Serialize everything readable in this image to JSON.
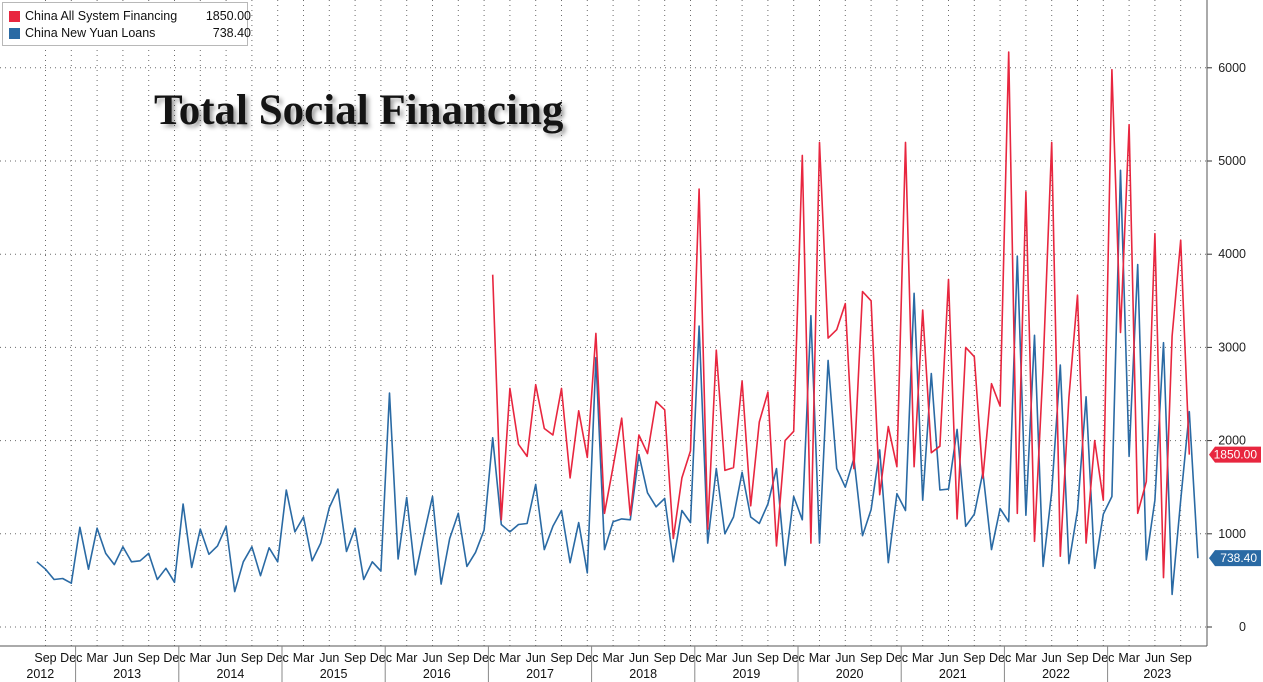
{
  "title": "Total Social Financing",
  "legend": [
    {
      "name": "China All System Financing",
      "value": "1850.00",
      "color": "#e8263f"
    },
    {
      "name": "China New Yuan Loans",
      "value": "738.40",
      "color": "#2a6aa4"
    }
  ],
  "chart_data": {
    "type": "line",
    "ylim": [
      -200,
      6700
    ],
    "yticks": [
      0,
      1000,
      2000,
      3000,
      4000,
      5000,
      6000
    ],
    "x_month_labels": [
      "Sep",
      "Dec",
      "Mar",
      "Jun",
      "Sep",
      "Dec",
      "Mar",
      "Jun",
      "Sep",
      "Dec",
      "Mar",
      "Jun",
      "Sep",
      "Dec",
      "Mar",
      "Jun",
      "Sep",
      "Dec",
      "Mar",
      "Jun",
      "Sep",
      "Dec",
      "Mar",
      "Jun",
      "Sep",
      "Dec",
      "Mar",
      "Jun",
      "Sep",
      "Dec",
      "Mar",
      "Jun",
      "Sep",
      "Dec",
      "Mar",
      "Jun",
      "Sep",
      "Dec",
      "Mar",
      "Jun",
      "Sep",
      "Dec",
      "Mar",
      "Jun",
      "Sep"
    ],
    "x_year_labels": [
      "2012",
      "2013",
      "2014",
      "2015",
      "2016",
      "2017",
      "2018",
      "2019",
      "2020",
      "2021",
      "2022",
      "2023"
    ],
    "start": "2012-08",
    "grid": true,
    "legend_position": "top-left",
    "last_value_tags": [
      "1850.00",
      "738.40"
    ],
    "series": [
      {
        "name": "China All System Financing",
        "color": "#e8263f",
        "start": "2017-01",
        "values": [
          3780,
          1150,
          2560,
          1960,
          1830,
          2600,
          2130,
          2060,
          2560,
          1600,
          2320,
          1820,
          3150,
          1220,
          1720,
          2240,
          1200,
          2060,
          1860,
          2420,
          2330,
          950,
          1600,
          1890,
          4700,
          1050,
          2970,
          1680,
          1710,
          2640,
          1300,
          2200,
          2520,
          870,
          2000,
          2100,
          5060,
          900,
          5200,
          3100,
          3190,
          3470,
          1700,
          3600,
          3500,
          1420,
          2150,
          1720,
          5200,
          1720,
          3400,
          1870,
          1940,
          3730,
          1160,
          3000,
          2900,
          1600,
          2610,
          2370,
          6170,
          1220,
          4670,
          920,
          2790,
          5200,
          760,
          2460,
          3560,
          900,
          2000,
          1360,
          5980,
          3160,
          5390,
          1220,
          1560,
          4220,
          530,
          3120,
          4150,
          1850
        ]
      },
      {
        "name": "China New Yuan Loans",
        "color": "#2a6aa4",
        "start": "2012-08",
        "values": [
          700,
          620,
          510,
          520,
          470,
          1070,
          620,
          1060,
          790,
          670,
          860,
          700,
          710,
          790,
          510,
          630,
          480,
          1320,
          640,
          1050,
          780,
          870,
          1080,
          380,
          700,
          860,
          550,
          850,
          700,
          1470,
          1020,
          1180,
          710,
          900,
          1280,
          1480,
          810,
          1060,
          510,
          700,
          600,
          2510,
          730,
          1390,
          560,
          990,
          1400,
          460,
          950,
          1220,
          650,
          800,
          1040,
          2030,
          1100,
          1020,
          1100,
          1110,
          1530,
          830,
          1080,
          1250,
          690,
          1120,
          580,
          2890,
          830,
          1130,
          1160,
          1150,
          1850,
          1440,
          1290,
          1380,
          700,
          1250,
          1120,
          3230,
          900,
          1700,
          1000,
          1180,
          1660,
          1180,
          1110,
          1320,
          1700,
          660,
          1400,
          1150,
          3340,
          900,
          2860,
          1700,
          1500,
          1810,
          980,
          1260,
          1900,
          690,
          1430,
          1250,
          3580,
          1360,
          2720,
          1470,
          1480,
          2120,
          1080,
          1210,
          1660,
          830,
          1270,
          1130,
          3980,
          1200,
          3130,
          650,
          1450,
          2810,
          680,
          1250,
          2470,
          630,
          1210,
          1400,
          4900,
          1830,
          3890,
          720,
          1360,
          3050,
          350,
          1360,
          2310,
          738.4
        ]
      }
    ]
  }
}
